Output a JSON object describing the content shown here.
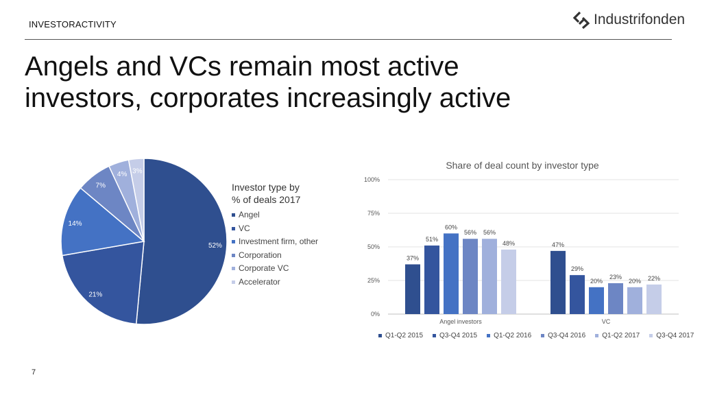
{
  "header": {
    "section_label": "INVESTORACTIVITY",
    "brand": "Industrifonden",
    "brand_icon": "industrifonden-logo-icon"
  },
  "title_line1": "Angels and VCs remain most active",
  "title_line2": "investors, corporates increasingly active",
  "page_number": "7",
  "colors": {
    "palette": [
      "#2f4f8f",
      "#34559e",
      "#4472c4",
      "#6d86c4",
      "#a0b0dc",
      "#c5cde8"
    ]
  },
  "chart_data": [
    {
      "type": "pie",
      "legend_title_line1": "Investor type by",
      "legend_title_line2": "% of deals 2017",
      "legend_placement": "right",
      "slices": [
        {
          "label": "Angel",
          "value": 52,
          "data_label": "52%"
        },
        {
          "label": "VC",
          "value": 21,
          "data_label": "21%"
        },
        {
          "label": "Investment firm, other",
          "value": 14,
          "data_label": "14%"
        },
        {
          "label": "Corporation",
          "value": 7,
          "data_label": "7%"
        },
        {
          "label": "Corporate VC",
          "value": 4,
          "data_label": "4%"
        },
        {
          "label": "Accelerator",
          "value": 3,
          "data_label": "3%"
        }
      ]
    },
    {
      "type": "bar",
      "title": "Share of deal count by investor type",
      "categories": [
        "Angel investors",
        "VC"
      ],
      "ylim": [
        0,
        100
      ],
      "yticks": [
        0,
        25,
        50,
        75,
        100
      ],
      "ytick_labels": [
        "0%",
        "25%",
        "50%",
        "75%",
        "100%"
      ],
      "grid": true,
      "legend_placement": "bottom",
      "series": [
        {
          "name": "Q1-Q2 2015",
          "values": [
            37,
            47
          ],
          "labels": [
            "37%",
            "47%"
          ]
        },
        {
          "name": "Q3-Q4 2015",
          "values": [
            51,
            29
          ],
          "labels": [
            "51%",
            "29%"
          ]
        },
        {
          "name": "Q1-Q2 2016",
          "values": [
            60,
            20
          ],
          "labels": [
            "60%",
            "20%"
          ]
        },
        {
          "name": "Q3-Q4 2016",
          "values": [
            56,
            23
          ],
          "labels": [
            "56%",
            "23%"
          ]
        },
        {
          "name": "Q1-Q2 2017",
          "values": [
            56,
            20
          ],
          "labels": [
            "56%",
            "20%"
          ]
        },
        {
          "name": "Q3-Q4 2017",
          "values": [
            48,
            22
          ],
          "labels": [
            "48%",
            "22%"
          ]
        }
      ]
    }
  ]
}
